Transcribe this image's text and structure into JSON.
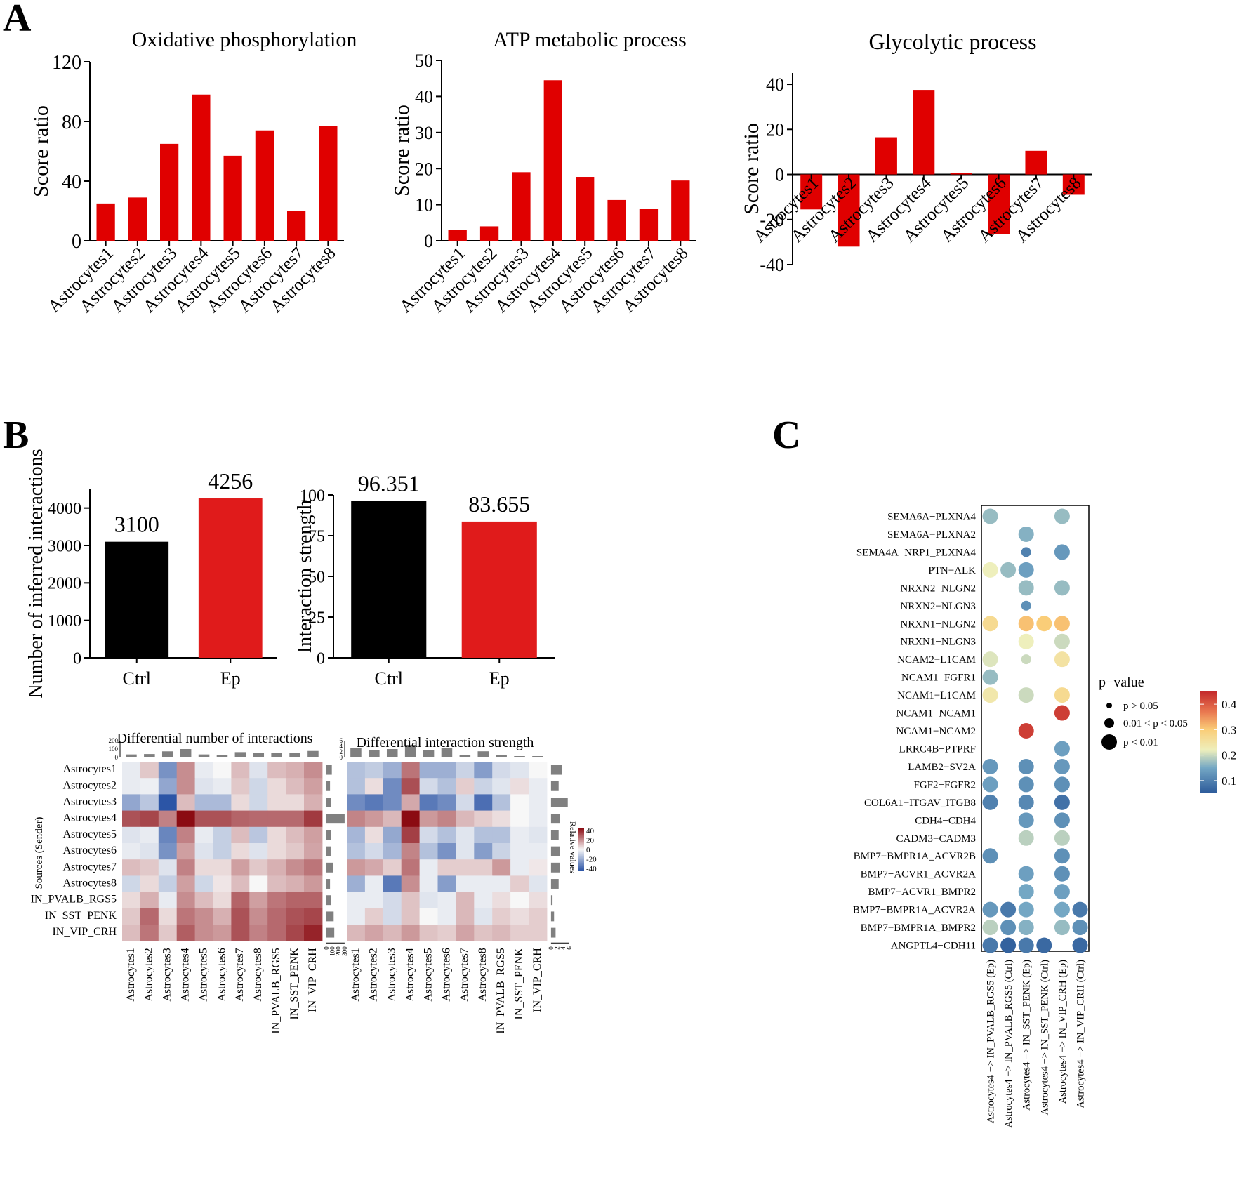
{
  "panels": {
    "a": "A",
    "b": "B",
    "c": "C"
  },
  "colors": {
    "bar_red": "#e00000",
    "bar_b_red": "#e01b1b",
    "bar_black": "#000000",
    "heat_low": "#2c55a6",
    "heat_mid": "#f7f7f7",
    "heat_high": "#8b0b12",
    "marginal_bar": "#808080"
  },
  "chart_data": [
    {
      "id": "a1",
      "type": "bar",
      "title": "Oxidative phosphorylation",
      "ylabel": "Score ratio",
      "xlabel": "",
      "categories": [
        "Astrocytes1",
        "Astrocytes2",
        "Astrocytes3",
        "Astrocytes4",
        "Astrocytes5",
        "Astrocytes6",
        "Astrocytes7",
        "Astrocytes8"
      ],
      "values": [
        25,
        29,
        65,
        98,
        57,
        74,
        20,
        77
      ],
      "ylim": [
        0,
        120
      ],
      "yticks": [
        "0",
        "40",
        "80",
        "120"
      ],
      "ytick_values": [
        0,
        40,
        80,
        120
      ],
      "grid": false
    },
    {
      "id": "a2",
      "type": "bar",
      "title": "ATP metabolic process",
      "ylabel": "Score ratio",
      "xlabel": "",
      "categories": [
        "Astrocytes1",
        "Astrocytes2",
        "Astrocytes3",
        "Astrocytes4",
        "Astrocytes5",
        "Astrocytes6",
        "Astrocytes7",
        "Astrocytes8"
      ],
      "values": [
        3,
        4,
        19,
        44.5,
        17.7,
        11.3,
        8.8,
        16.7
      ],
      "ylim": [
        0,
        50
      ],
      "yticks": [
        "0",
        "10",
        "20",
        "30",
        "40",
        "50"
      ],
      "ytick_values": [
        0,
        10,
        20,
        30,
        40,
        50
      ],
      "grid": false
    },
    {
      "id": "a3",
      "type": "bar",
      "title": "Glycolytic process",
      "ylabel": "Score ratio",
      "xlabel": "",
      "categories": [
        "Astrocytes1",
        "Astrocytes2",
        "Astrocytes3",
        "Astrocytes4",
        "Astrocytes5",
        "Astrocytes6",
        "Astrocytes7",
        "Astrocytes8"
      ],
      "values": [
        -15.5,
        -32,
        16.5,
        37.5,
        0.5,
        -26.5,
        10.5,
        -9
      ],
      "ylim": [
        -40,
        45
      ],
      "yticks": [
        "-40",
        "-20",
        "0",
        "20",
        "40"
      ],
      "ytick_values": [
        -40,
        -20,
        0,
        20,
        40
      ],
      "grid": false
    },
    {
      "id": "b1",
      "type": "bar",
      "title": "",
      "ylabel": "Number of inferred interactions",
      "xlabel": "",
      "categories": [
        "Ctrl",
        "Ep"
      ],
      "values": [
        3100,
        4256
      ],
      "data_labels": [
        "3100",
        "4256"
      ],
      "ylim": [
        0,
        4500
      ],
      "yticks": [
        "0",
        "1000",
        "2000",
        "3000",
        "4000"
      ],
      "ytick_values": [
        0,
        1000,
        2000,
        3000,
        4000
      ],
      "grid": false
    },
    {
      "id": "b2",
      "type": "bar",
      "title": "",
      "ylabel": "Interaction strength",
      "xlabel": "",
      "categories": [
        "Ctrl",
        "Ep"
      ],
      "values": [
        96.351,
        83.655
      ],
      "data_labels": [
        "96.351",
        "83.655"
      ],
      "ylim": [
        0,
        100
      ],
      "yticks": [
        "0",
        "25",
        "50",
        "75",
        "100"
      ],
      "ytick_values": [
        0,
        25,
        50,
        75,
        100
      ],
      "grid": false
    },
    {
      "id": "b3",
      "type": "heatmap",
      "title": "Differential number of interactions",
      "ylabel": "Sources (Sender)",
      "rows": [
        "Astrocytes1",
        "Astrocytes2",
        "Astrocytes3",
        "Astrocytes4",
        "Astrocytes5",
        "Astrocytes6",
        "Astrocytes7",
        "Astrocytes8",
        "IN_PVALB_RGS5",
        "IN_SST_PENK",
        "IN_VIP_CRH"
      ],
      "cols": [
        "Astrocytes1",
        "Astrocytes2",
        "Astrocytes3",
        "Astrocytes4",
        "Astrocytes5",
        "Astrocytes6",
        "Astrocytes7",
        "Astrocytes8",
        "IN_PVALB_RGS5",
        "IN_SST_PENK",
        "IN_VIP_CRH"
      ],
      "values": [
        [
          -3,
          8,
          -25,
          18,
          -3,
          0,
          10,
          -5,
          10,
          12,
          18
        ],
        [
          -3,
          -2,
          -20,
          18,
          -5,
          -3,
          8,
          -8,
          5,
          10,
          15
        ],
        [
          -20,
          -12,
          -40,
          10,
          -15,
          -15,
          5,
          -8,
          5,
          5,
          12
        ],
        [
          28,
          30,
          20,
          40,
          28,
          28,
          25,
          24,
          24,
          24,
          32
        ],
        [
          -5,
          -3,
          -28,
          20,
          -3,
          -10,
          10,
          -12,
          5,
          10,
          15
        ],
        [
          -3,
          -5,
          -25,
          15,
          -5,
          -10,
          5,
          -5,
          5,
          8,
          14
        ],
        [
          10,
          8,
          -5,
          20,
          5,
          5,
          15,
          8,
          12,
          18,
          22
        ],
        [
          -8,
          5,
          -10,
          15,
          -8,
          3,
          10,
          0,
          10,
          12,
          16
        ],
        [
          5,
          12,
          -3,
          18,
          10,
          5,
          25,
          15,
          22,
          25,
          25
        ],
        [
          8,
          24,
          5,
          22,
          18,
          12,
          28,
          18,
          24,
          28,
          30
        ],
        [
          10,
          22,
          8,
          26,
          18,
          16,
          28,
          20,
          24,
          30,
          36
        ]
      ],
      "colorbar_title": "Relative values",
      "colorbar_ticks": [
        "40",
        "20",
        "0",
        "-20",
        "-40"
      ],
      "top_ticks": [
        "200",
        "100",
        "0"
      ],
      "right_ticks": [
        "0",
        "100",
        "200",
        "300"
      ],
      "top_bars": [
        40,
        45,
        80,
        110,
        40,
        35,
        70,
        55,
        55,
        60,
        85
      ],
      "right_bars": [
        90,
        60,
        80,
        300,
        80,
        70,
        110,
        60,
        80,
        120,
        130
      ]
    },
    {
      "id": "b4",
      "type": "heatmap",
      "title": "Differential interaction strength",
      "rows": [
        "Astrocytes1",
        "Astrocytes2",
        "Astrocytes3",
        "Astrocytes4",
        "Astrocytes5",
        "Astrocytes6",
        "Astrocytes7",
        "Astrocytes8",
        "IN_PVALB_RGS5",
        "IN_SST_PENK",
        "IN_VIP_CRH"
      ],
      "cols": [
        "Astrocytes1",
        "Astrocytes2",
        "Astrocytes3",
        "Astrocytes4",
        "Astrocytes5",
        "Astrocytes6",
        "Astrocytes7",
        "Astrocytes8",
        "IN_PVALB_RGS5",
        "IN_SST_PENK",
        "IN_VIP_CRH"
      ],
      "values": [
        [
          -15,
          -12,
          -20,
          25,
          -20,
          -20,
          -10,
          -25,
          -8,
          -5,
          0
        ],
        [
          -15,
          5,
          -30,
          32,
          -8,
          -15,
          8,
          -10,
          -5,
          5,
          -3
        ],
        [
          -30,
          -35,
          -30,
          15,
          -35,
          -30,
          -8,
          -38,
          -15,
          0,
          -3
        ],
        [
          22,
          18,
          12,
          45,
          18,
          22,
          12,
          8,
          5,
          0,
          -3
        ],
        [
          -18,
          5,
          -22,
          35,
          -8,
          -15,
          -5,
          -15,
          -15,
          -3,
          -5
        ],
        [
          -15,
          -8,
          -18,
          22,
          -15,
          -28,
          -5,
          -25,
          -10,
          -3,
          -3
        ],
        [
          18,
          15,
          8,
          25,
          -3,
          8,
          8,
          8,
          18,
          -3,
          3
        ],
        [
          -20,
          -3,
          -35,
          20,
          -3,
          -25,
          -3,
          -3,
          -3,
          8,
          -5
        ],
        [
          -3,
          -3,
          -8,
          10,
          -5,
          -3,
          12,
          -3,
          5,
          0,
          5
        ],
        [
          -3,
          8,
          -8,
          10,
          0,
          -3,
          12,
          -5,
          8,
          5,
          8
        ],
        [
          12,
          16,
          12,
          18,
          10,
          8,
          16,
          10,
          12,
          8,
          8
        ]
      ],
      "top_ticks": [
        "6",
        "4",
        "2",
        "0"
      ],
      "right_ticks": [
        "0",
        "2",
        "4",
        "6"
      ],
      "top_bars": [
        3.5,
        2.5,
        3.0,
        4.5,
        2.5,
        3.5,
        1.0,
        2.2,
        1.0,
        0.5,
        0.5
      ],
      "right_bars": [
        3.5,
        2.5,
        5.5,
        3.0,
        2.5,
        3.0,
        3.0,
        2.5,
        0.5,
        1.0,
        1.5
      ]
    },
    {
      "id": "c",
      "type": "scatter",
      "title": "",
      "legend_title": "p−value",
      "rows": [
        "SEMA6A−PLXNA4",
        "SEMA6A−PLXNA2",
        "SEMA4A−NRP1_PLXNA4",
        "PTN−ALK",
        "NRXN2−NLGN2",
        "NRXN2−NLGN3",
        "NRXN1−NLGN2",
        "NRXN1−NLGN3",
        "NCAM2−L1CAM",
        "NCAM1−FGFR1",
        "NCAM1−L1CAM",
        "NCAM1−NCAM1",
        "NCAM1−NCAM2",
        "LRRC4B−PTPRF",
        "LAMB2−SV2A",
        "FGF2−FGFR2",
        "COL6A1−ITGAV_ITGB8",
        "CDH4−CDH4",
        "CADM3−CADM3",
        "BMP7−BMPR1A_ACVR2B",
        "BMP7−ACVR1_ACVR2A",
        "BMP7−ACVR1_BMPR2",
        "BMP7−BMPR1A_ACVR2A",
        "BMP7−BMPR1A_BMPR2",
        "ANGPTL4−CDH11"
      ],
      "cols": [
        "Astrocytes4 −> IN_PVALB_RGS5 (Ep)",
        "Astrocytes4 −> IN_PVALB_RGS5 (Ctrl)",
        "Astrocytes4 −> IN_SST_PENK (Ep)",
        "Astrocytes4 −> IN_SST_PENK (Ctrl)",
        "Astrocytes4 −> IN_VIP_CRH (Ep)",
        "Astrocytes4 −> IN_VIP_CRH (Ctrl)"
      ],
      "points": [
        [
          0,
          0,
          0.17,
          3
        ],
        [
          0,
          4,
          0.17,
          3
        ],
        [
          1,
          2,
          0.16,
          3
        ],
        [
          2,
          2,
          0.1,
          2
        ],
        [
          2,
          4,
          0.13,
          3
        ],
        [
          3,
          0,
          0.22,
          3
        ],
        [
          3,
          1,
          0.17,
          3
        ],
        [
          3,
          2,
          0.14,
          3
        ],
        [
          4,
          2,
          0.17,
          3
        ],
        [
          4,
          4,
          0.17,
          3
        ],
        [
          5,
          2,
          0.12,
          2
        ],
        [
          6,
          0,
          0.27,
          3
        ],
        [
          6,
          2,
          0.31,
          3
        ],
        [
          6,
          3,
          0.3,
          3
        ],
        [
          6,
          4,
          0.31,
          3
        ],
        [
          7,
          2,
          0.22,
          3
        ],
        [
          7,
          4,
          0.2,
          3
        ],
        [
          8,
          0,
          0.21,
          3
        ],
        [
          8,
          2,
          0.2,
          2
        ],
        [
          8,
          4,
          0.25,
          3
        ],
        [
          9,
          0,
          0.17,
          3
        ],
        [
          10,
          0,
          0.24,
          3
        ],
        [
          10,
          2,
          0.2,
          3
        ],
        [
          10,
          4,
          0.27,
          3
        ],
        [
          11,
          4,
          0.43,
          3
        ],
        [
          12,
          2,
          0.43,
          3
        ],
        [
          13,
          4,
          0.14,
          3
        ],
        [
          14,
          0,
          0.13,
          3
        ],
        [
          14,
          2,
          0.12,
          3
        ],
        [
          14,
          4,
          0.13,
          3
        ],
        [
          15,
          0,
          0.14,
          3
        ],
        [
          15,
          2,
          0.12,
          3
        ],
        [
          15,
          4,
          0.12,
          3
        ],
        [
          16,
          0,
          0.1,
          3
        ],
        [
          16,
          2,
          0.11,
          3
        ],
        [
          16,
          4,
          0.08,
          3
        ],
        [
          17,
          2,
          0.13,
          3
        ],
        [
          17,
          4,
          0.12,
          3
        ],
        [
          18,
          2,
          0.19,
          3
        ],
        [
          18,
          4,
          0.19,
          3
        ],
        [
          19,
          0,
          0.12,
          3
        ],
        [
          19,
          4,
          0.12,
          3
        ],
        [
          20,
          2,
          0.14,
          3
        ],
        [
          20,
          4,
          0.12,
          3
        ],
        [
          21,
          2,
          0.15,
          3
        ],
        [
          21,
          4,
          0.14,
          3
        ],
        [
          22,
          0,
          0.13,
          3
        ],
        [
          22,
          1,
          0.09,
          3
        ],
        [
          22,
          2,
          0.15,
          3
        ],
        [
          22,
          4,
          0.15,
          3
        ],
        [
          22,
          5,
          0.09,
          3
        ],
        [
          23,
          0,
          0.19,
          3
        ],
        [
          23,
          1,
          0.12,
          3
        ],
        [
          23,
          2,
          0.16,
          3
        ],
        [
          23,
          4,
          0.17,
          3
        ],
        [
          23,
          5,
          0.12,
          3
        ],
        [
          24,
          0,
          0.09,
          3
        ],
        [
          24,
          1,
          0.06,
          3
        ],
        [
          24,
          2,
          0.09,
          3
        ],
        [
          24,
          3,
          0.07,
          3
        ],
        [
          24,
          5,
          0.07,
          3
        ]
      ],
      "size_legend": [
        "p > 0.05",
        "0.01 < p < 0.05",
        "p < 0.01"
      ],
      "color_ticks": [
        "0.4",
        "0.3",
        "0.2",
        "0.1"
      ],
      "color_tick_values": [
        0.4,
        0.3,
        0.2,
        0.1
      ],
      "color_range": [
        0.05,
        0.45
      ]
    }
  ]
}
